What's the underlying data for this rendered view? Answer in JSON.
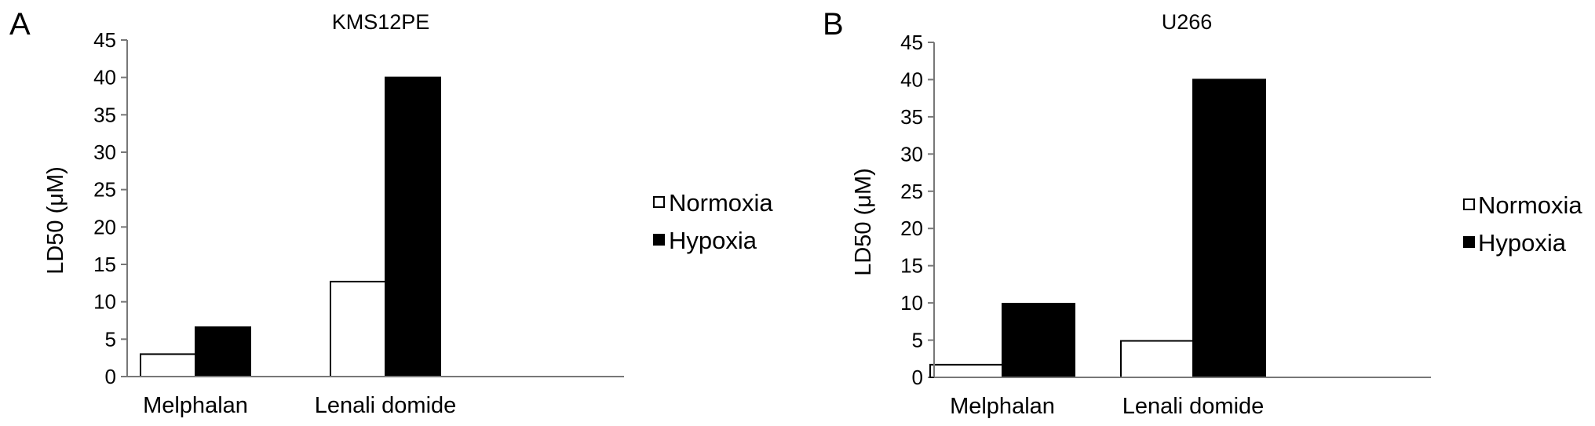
{
  "chart_data": [
    {
      "type": "bar",
      "panel_label": "A",
      "title": "KMS12PE",
      "xlabel": "",
      "ylabel": "LD50 (μM)",
      "categories": [
        "Melphalan",
        "Lenali domide"
      ],
      "series": [
        {
          "name": "Normoxia",
          "color": "#ffffff",
          "values": [
            3,
            12.7
          ]
        },
        {
          "name": "Hypoxia",
          "color": "#000000",
          "values": [
            6.6,
            40
          ]
        }
      ],
      "ylim": [
        0,
        45
      ],
      "yticks": [
        0,
        5,
        10,
        15,
        20,
        25,
        30,
        35,
        40,
        45
      ],
      "grid": false,
      "legend_position": "right"
    },
    {
      "type": "bar",
      "panel_label": "B",
      "title": "U266",
      "xlabel": "",
      "ylabel": "LD50 (μM)",
      "categories": [
        "Melphalan",
        "Lenali domide"
      ],
      "series": [
        {
          "name": "Normoxia",
          "color": "#ffffff",
          "values": [
            1.7,
            4.9
          ]
        },
        {
          "name": "Hypoxia",
          "color": "#000000",
          "values": [
            9.9,
            40
          ]
        }
      ],
      "ylim": [
        0,
        45
      ],
      "yticks": [
        0,
        5,
        10,
        15,
        20,
        25,
        30,
        35,
        40,
        45
      ],
      "grid": false,
      "legend_position": "right"
    }
  ]
}
